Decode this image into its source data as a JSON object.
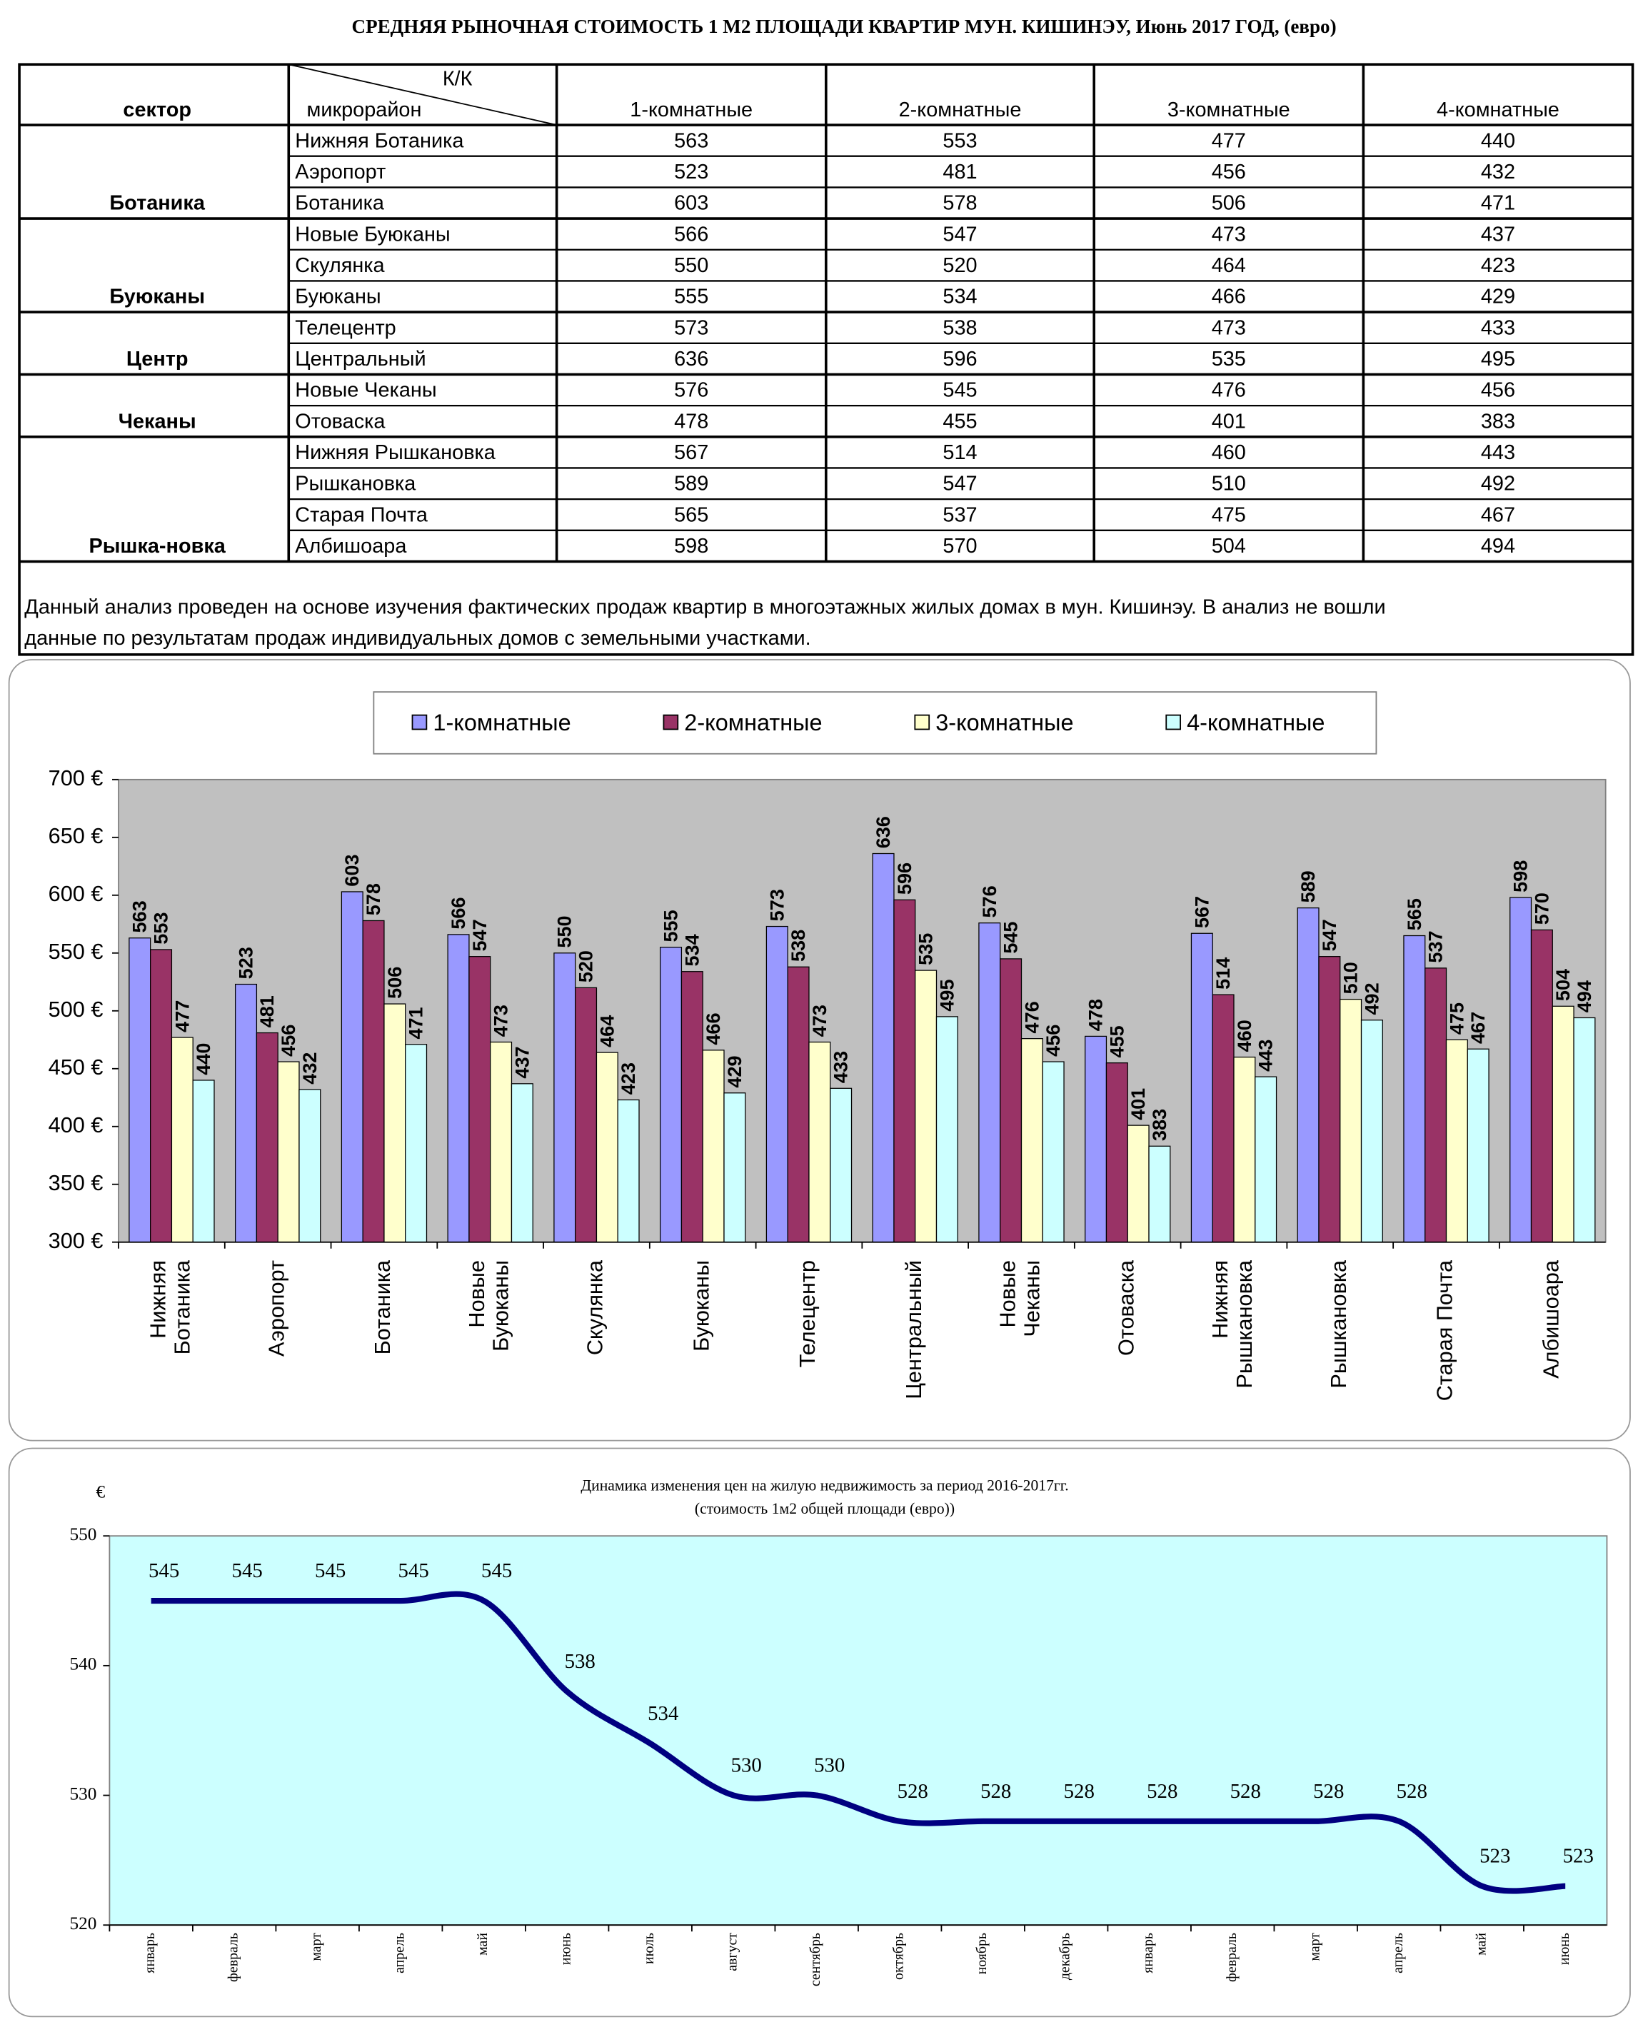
{
  "title": "СРЕДНЯЯ РЫНОЧНАЯ СТОИМОСТЬ 1 М2 ПЛОЩАДИ КВАРТИР МУН. КИШИНЭУ, Июнь 2017 ГОД, (евро)",
  "table": {
    "headers": {
      "sector": "сектор",
      "kk": "К/К",
      "district": "микрорайон"
    },
    "rows": [
      {
        "sector": null,
        "district": "Нижняя Ботаника"
      },
      {
        "sector": null,
        "district": "Аэропорт"
      },
      {
        "sector": "Ботаника",
        "district": "Ботаника"
      },
      {
        "sector": null,
        "district": "Новые Буюканы"
      },
      {
        "sector": null,
        "district": "Скулянка"
      },
      {
        "sector": "Буюканы",
        "district": "Буюканы"
      },
      {
        "sector": null,
        "district": "Телецентр"
      },
      {
        "sector": "Центр",
        "district": "Центральный"
      },
      {
        "sector": null,
        "district": "Новые Чеканы"
      },
      {
        "sector": "Чеканы",
        "district": "Отоваска"
      },
      {
        "sector": null,
        "district": "Нижняя Рышкановка"
      },
      {
        "sector": null,
        "district": "Рышкановка"
      },
      {
        "sector": null,
        "district": "Старая Почта"
      },
      {
        "sector": "Рышка-новка",
        "district": "Албишоара"
      }
    ]
  },
  "note": [
    "Данный анализ проведен на основе изучения фактических продаж квартир в многоэтажных жилых домах в мун. Кишинэу. В анализ не вошли",
    "данные по результатам продаж индивидуальных домов с земельными участками."
  ],
  "chart_data": [
    {
      "type": "bar",
      "categories": [
        "Нижняя\nБотаника",
        "Аэропорт",
        "Ботаника",
        "Новые\nБуюканы",
        "Скулянка",
        "Буюканы",
        "Телецентр",
        "Центральный",
        "Новые\nЧеканы",
        "Отоваска",
        "Нижняя\nРышкановка",
        "Рышкановка",
        "Старая Почта",
        "Албишоара"
      ],
      "series": [
        {
          "name": "1-комнатные",
          "color": "#9999ff",
          "values": [
            563,
            523,
            603,
            566,
            550,
            555,
            573,
            636,
            576,
            478,
            567,
            589,
            565,
            598
          ]
        },
        {
          "name": "2-комнатные",
          "color": "#993366",
          "values": [
            553,
            481,
            578,
            547,
            520,
            534,
            538,
            596,
            545,
            455,
            514,
            547,
            537,
            570
          ]
        },
        {
          "name": "3-комнатные",
          "color": "#ffffcc",
          "values": [
            477,
            456,
            506,
            473,
            464,
            466,
            473,
            535,
            476,
            401,
            460,
            510,
            475,
            504
          ]
        },
        {
          "name": "4-комнатные",
          "color": "#ccffff",
          "values": [
            440,
            432,
            471,
            437,
            423,
            429,
            433,
            495,
            456,
            383,
            443,
            492,
            467,
            494
          ]
        }
      ],
      "ylim": [
        300,
        700
      ],
      "yticks": [
        {
          "value": 300,
          "label": "300 €"
        },
        {
          "value": 350,
          "label": "350 €"
        },
        {
          "value": 400,
          "label": "400 €"
        },
        {
          "value": 450,
          "label": "450 €"
        },
        {
          "value": 500,
          "label": "500 €"
        },
        {
          "value": 550,
          "label": "550 €"
        },
        {
          "value": 600,
          "label": "600 €"
        },
        {
          "value": 650,
          "label": "650 €"
        },
        {
          "value": 700,
          "label": "700 €"
        }
      ],
      "legend": "top"
    },
    {
      "type": "line",
      "title": "Динамика изменения цен на жилую недвижимость за период 2016-2017гг.",
      "subtitle": "(стоимость 1м2 общей площади (евро))",
      "ylabel": "€",
      "categories": [
        "январь",
        "февраль",
        "март",
        "апрель",
        "май",
        "июнь",
        "июль",
        "август",
        "сентябрь",
        "октябрь",
        "ноябрь",
        "декабрь",
        "январь",
        "февраль",
        "март",
        "апрель",
        "май",
        "июнь"
      ],
      "values": [
        545,
        545,
        545,
        545,
        545,
        538,
        534,
        530,
        530,
        528,
        528,
        528,
        528,
        528,
        528,
        528,
        523,
        523
      ],
      "color": "#000080",
      "ylim": [
        520,
        550
      ],
      "yticks": [
        520,
        530,
        540,
        550
      ]
    }
  ]
}
